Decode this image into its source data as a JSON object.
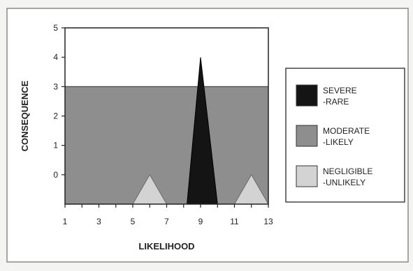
{
  "chart_data": {
    "type": "area",
    "title": "",
    "xlabel": "LIKELIHOOD",
    "ylabel": "CONSEQUENCE",
    "xlim": [
      1,
      13
    ],
    "ylim": [
      -1,
      5
    ],
    "x_ticks": [
      1,
      3,
      5,
      7,
      9,
      11,
      13
    ],
    "y_ticks": [
      0,
      1,
      2,
      3,
      4,
      5
    ],
    "legend_position": "right",
    "series": [
      {
        "name": "MODERATE -LIKELY",
        "legend_lines": [
          "MODERATE",
          "-LIKELY"
        ],
        "color": "#8e8e8e",
        "points": [
          [
            1,
            3
          ],
          [
            13,
            3
          ]
        ]
      },
      {
        "name": "SEVERE -RARE",
        "legend_lines": [
          "SEVERE",
          "-RARE"
        ],
        "color": "#141414",
        "points": [
          [
            8.2,
            -1
          ],
          [
            9,
            4
          ],
          [
            10,
            -1
          ]
        ]
      },
      {
        "name": "NEGLIGIBLE -UNLIKELY",
        "legend_lines": [
          "NEGLIGIBLE",
          "-UNLIKELY"
        ],
        "color": "#d3d3d3",
        "points_list": [
          [
            [
              5,
              -1
            ],
            [
              6,
              0
            ],
            [
              7,
              -1
            ]
          ],
          [
            [
              11,
              -1
            ],
            [
              12,
              0
            ],
            [
              13,
              -1
            ]
          ]
        ]
      }
    ]
  }
}
